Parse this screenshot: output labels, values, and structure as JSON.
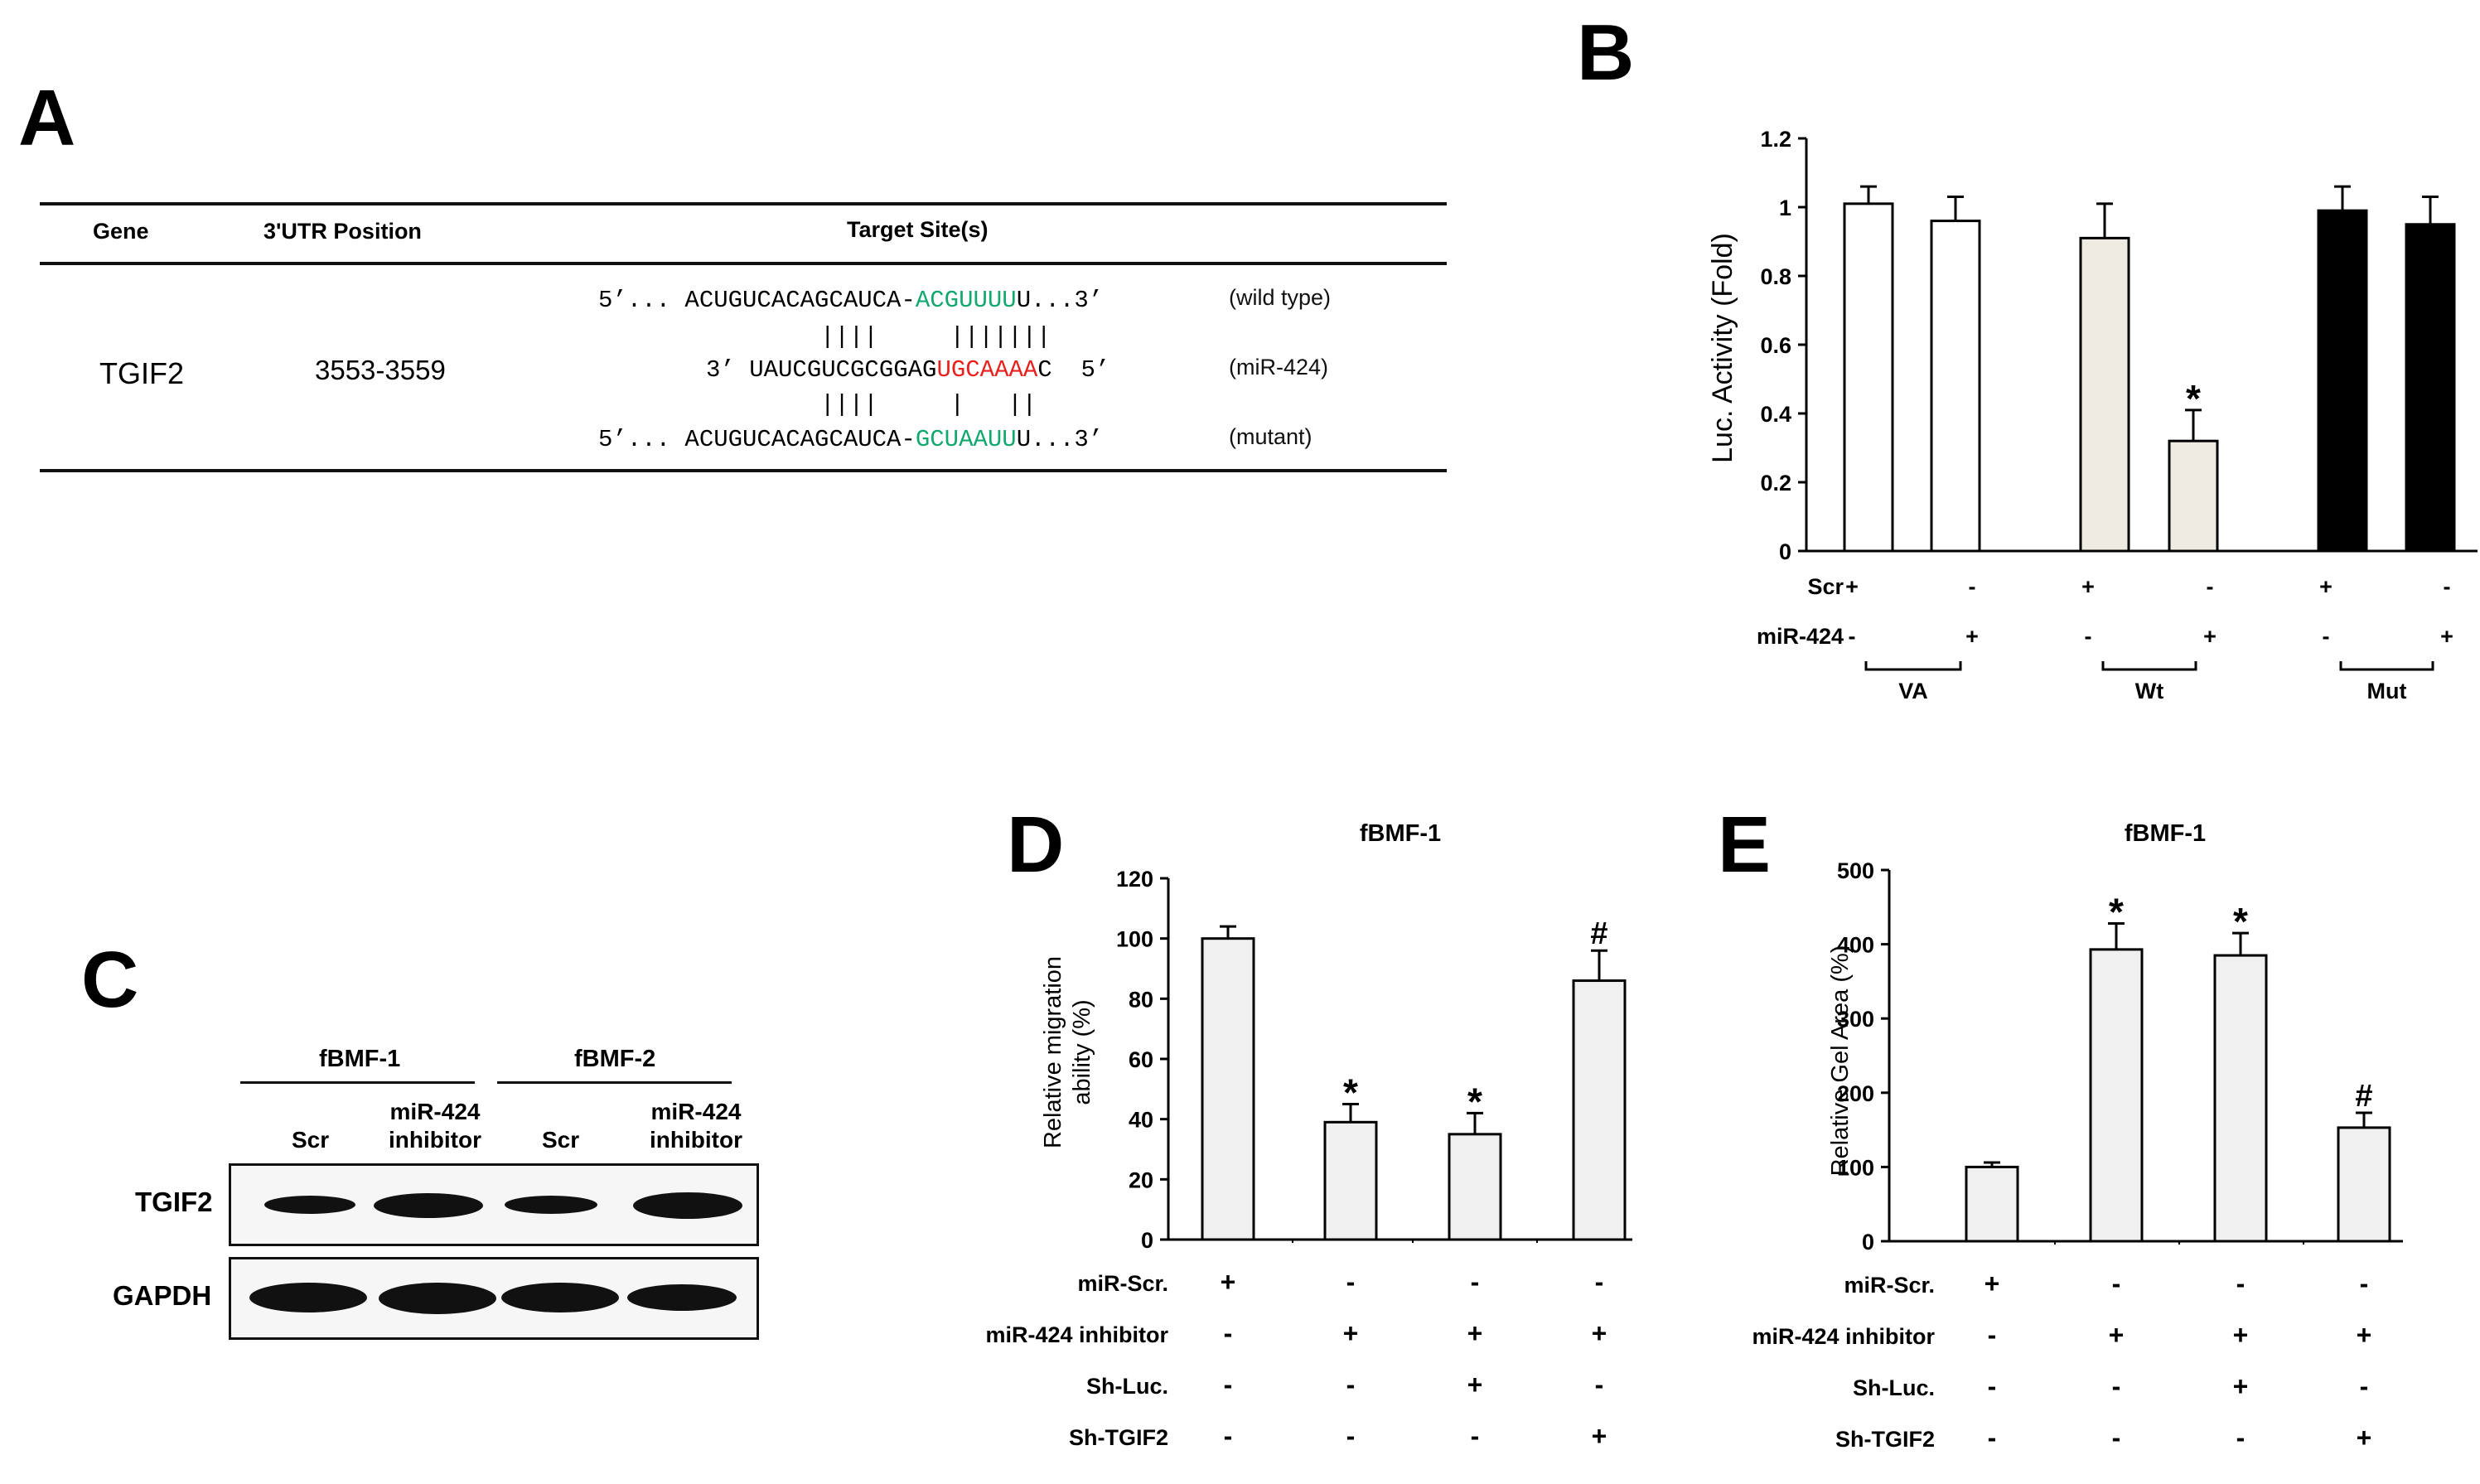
{
  "panels": {
    "A": "A",
    "B": "B",
    "C": "C",
    "D": "D",
    "E": "E"
  },
  "panel_a": {
    "headers": {
      "gene": "Gene",
      "position": "3'UTR Position",
      "target": "Target Site(s)"
    },
    "gene": "TGIF2",
    "position": "3553-3559",
    "wild": {
      "prefix": "5’... ACUGUCACAGCAUCA-",
      "site": "ACGUUUU",
      "suffix": "U...3’",
      "label": "(wild type)"
    },
    "pair1": "||||     |||||||",
    "mir": {
      "prefix": "3’ UAUCGUCGCGGAG",
      "site": "UGCAAAA",
      "suffix": "C  5’",
      "label": "(miR-424)"
    },
    "pair2": "||||     |   ||",
    "mutant": {
      "prefix": "5’... ACUGUCACAGCAUCA-",
      "site": "GCUAAUU",
      "suffix": "U...3’",
      "label": "(mutant)"
    }
  },
  "panel_c": {
    "groups": [
      "fBMF-1",
      "fBMF-2"
    ],
    "lanes": [
      "Scr",
      "miR-424\ninhibitor",
      "Scr",
      "miR-424\ninhibitor"
    ],
    "rows": [
      "TGIF2",
      "GAPDH"
    ]
  },
  "chart_data": [
    {
      "panel": "B",
      "type": "bar",
      "ylabel": "Luc. Activity  (Fold)",
      "ylim": [
        0,
        1.2
      ],
      "yticks": [
        "0",
        "0.2",
        "0.4",
        "0.6",
        "0.8",
        "1",
        "1.2"
      ],
      "values": [
        1.01,
        0.96,
        0.91,
        0.32,
        0.99,
        0.95
      ],
      "errors": [
        0.05,
        0.07,
        0.1,
        0.09,
        0.07,
        0.08
      ],
      "bar_colors": [
        "#ffffff",
        "#ffffff",
        "#eeebe2",
        "#eeebe2",
        "#000000",
        "#000000"
      ],
      "annotations": [
        "",
        "",
        "",
        "*",
        "",
        ""
      ],
      "conditions": [
        {
          "label": "Scr",
          "signs": [
            "+",
            "-",
            "+",
            "-",
            "+",
            "-"
          ]
        },
        {
          "label": "miR-424",
          "signs": [
            "-",
            "+",
            "-",
            "+",
            "-",
            "+"
          ]
        }
      ],
      "groups": [
        "VA",
        "Wt",
        "Mut"
      ]
    },
    {
      "panel": "D",
      "type": "bar",
      "title": "fBMF-1",
      "ylabel_line1": "Relative migration",
      "ylabel_line2": "ability (%)",
      "ylim": [
        0,
        120
      ],
      "yticks": [
        "0",
        "20",
        "40",
        "60",
        "80",
        "100",
        "120"
      ],
      "values": [
        100,
        39,
        35,
        86
      ],
      "errors": [
        4,
        6,
        7,
        10
      ],
      "annotations": [
        "",
        "*",
        "*",
        "#"
      ],
      "conditions": [
        {
          "label": "miR-Scr.",
          "signs": [
            "+",
            "-",
            "-",
            "-"
          ]
        },
        {
          "label": "miR-424 inhibitor",
          "signs": [
            "-",
            "+",
            "+",
            "+"
          ]
        },
        {
          "label": "Sh-Luc.",
          "signs": [
            "-",
            "-",
            "+",
            "-"
          ]
        },
        {
          "label": "Sh-TGIF2",
          "signs": [
            "-",
            "-",
            "-",
            "+"
          ]
        }
      ]
    },
    {
      "panel": "E",
      "type": "bar",
      "title": "fBMF-1",
      "ylabel": "Relative Gel Area (%)",
      "ylim": [
        0,
        500
      ],
      "yticks": [
        "0",
        "100",
        "200",
        "300",
        "400",
        "500"
      ],
      "values": [
        100,
        393,
        385,
        153
      ],
      "errors": [
        6,
        35,
        30,
        20
      ],
      "annotations": [
        "",
        "*",
        "*",
        "#"
      ],
      "conditions": [
        {
          "label": "miR-Scr.",
          "signs": [
            "+",
            "-",
            "-",
            "-"
          ]
        },
        {
          "label": "miR-424 inhibitor",
          "signs": [
            "-",
            "+",
            "+",
            "+"
          ]
        },
        {
          "label": "Sh-Luc.",
          "signs": [
            "-",
            "-",
            "+",
            "-"
          ]
        },
        {
          "label": "Sh-TGIF2",
          "signs": [
            "-",
            "-",
            "-",
            "+"
          ]
        }
      ]
    }
  ]
}
